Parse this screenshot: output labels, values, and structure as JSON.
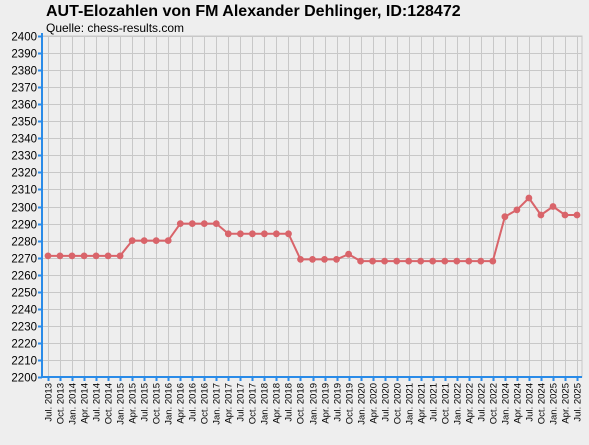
{
  "chart_data": {
    "type": "line",
    "title": "AUT-Elozahlen von FM Alexander Dehlinger, ID:128472",
    "subtitle": "Quelle: chess-results.com",
    "xlabel": "",
    "ylabel": "",
    "ylim": [
      2200,
      2400
    ],
    "y_tick_step": 10,
    "grid": true,
    "categories": [
      "Jul. 2013",
      "Oct. 2013",
      "Jan. 2014",
      "Apr. 2014",
      "Jul. 2014",
      "Oct. 2014",
      "Jan. 2015",
      "Apr. 2015",
      "Jul. 2015",
      "Oct. 2015",
      "Jan. 2016",
      "Apr. 2016",
      "Jul. 2016",
      "Oct. 2016",
      "Jan. 2017",
      "Apr. 2017",
      "Jul. 2017",
      "Oct. 2017",
      "Jan. 2018",
      "Apr. 2018",
      "Jul. 2018",
      "Oct. 2018",
      "Jan. 2019",
      "Apr. 2019",
      "Jul. 2019",
      "Oct. 2019",
      "Jan. 2020",
      "Apr. 2020",
      "Jul. 2020",
      "Oct. 2020",
      "Jan. 2021",
      "Apr. 2021",
      "Jul. 2021",
      "Oct. 2021",
      "Jan. 2022",
      "Apr. 2022",
      "Jul. 2022",
      "Oct. 2022",
      "Jan. 2024",
      "Apr. 2024",
      "Jul. 2024",
      "Oct. 2024",
      "Jan. 2025",
      "Apr. 2025",
      "Jul. 2025"
    ],
    "series": [
      {
        "name": "",
        "color": "#d9646a",
        "values": [
          2271,
          2271,
          2271,
          2271,
          2271,
          2271,
          2271,
          2280,
          2280,
          2280,
          2280,
          2290,
          2290,
          2290,
          2290,
          2284,
          2284,
          2284,
          2284,
          2284,
          2284,
          2269,
          2269,
          2269,
          2269,
          2272,
          2268,
          2268,
          2268,
          2268,
          2268,
          2268,
          2268,
          2268,
          2268,
          2268,
          2268,
          2268,
          2294,
          2298,
          2305,
          2295,
          2300,
          2295,
          2295
        ]
      }
    ],
    "colors": {
      "background": "#eeeeee",
      "grid": "#c8c8c8",
      "axis": "#2a8be8"
    }
  }
}
